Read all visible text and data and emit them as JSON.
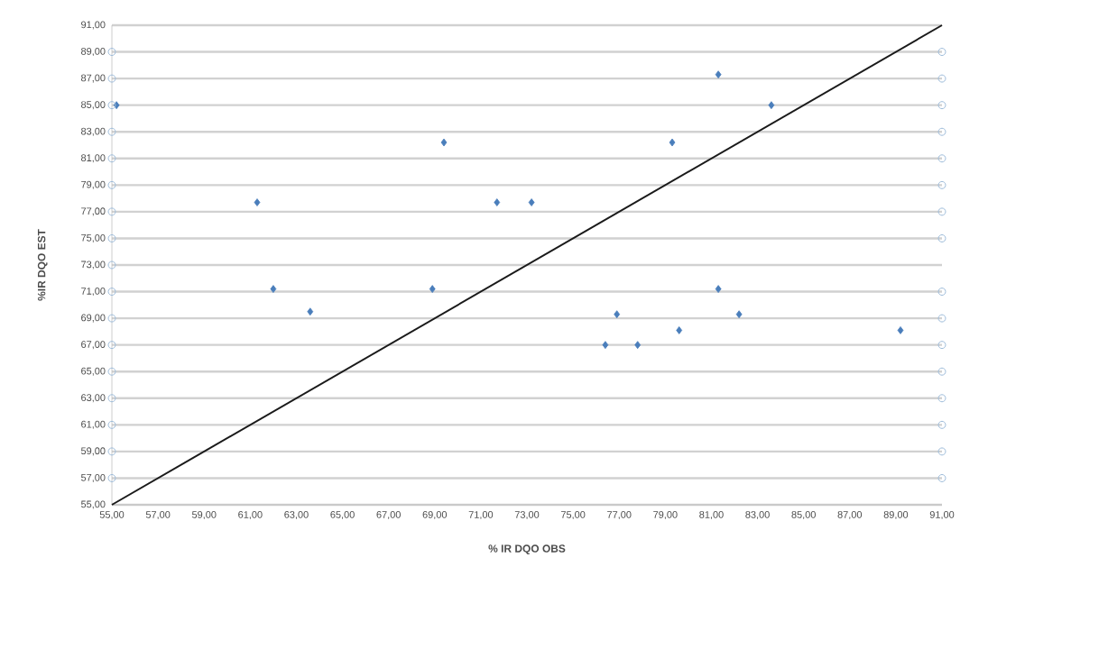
{
  "chart_data": {
    "type": "scatter",
    "xlabel": "% IR DQO OBS",
    "ylabel": "%IR DQO EST",
    "xlim": [
      55,
      91
    ],
    "ylim": [
      55,
      91
    ],
    "xticks": [
      {
        "value": 55,
        "label": "55,00"
      },
      {
        "value": 57,
        "label": "57,00"
      },
      {
        "value": 59,
        "label": "59,00"
      },
      {
        "value": 61,
        "label": "61,00"
      },
      {
        "value": 63,
        "label": "63,00"
      },
      {
        "value": 65,
        "label": "65,00"
      },
      {
        "value": 67,
        "label": "67,00"
      },
      {
        "value": 69,
        "label": "69,00"
      },
      {
        "value": 71,
        "label": "71,00"
      },
      {
        "value": 73,
        "label": "73,00"
      },
      {
        "value": 75,
        "label": "75,00"
      },
      {
        "value": 77,
        "label": "77,00"
      },
      {
        "value": 79,
        "label": "79,00"
      },
      {
        "value": 81,
        "label": "81,00"
      },
      {
        "value": 83,
        "label": "83,00"
      },
      {
        "value": 85,
        "label": "85,00"
      },
      {
        "value": 87,
        "label": "87,00"
      },
      {
        "value": 89,
        "label": "89,00"
      },
      {
        "value": 91,
        "label": "91,00"
      }
    ],
    "yticks": [
      {
        "value": 55,
        "label": "55,00"
      },
      {
        "value": 57,
        "label": "57,00"
      },
      {
        "value": 59,
        "label": "59,00"
      },
      {
        "value": 61,
        "label": "61,00"
      },
      {
        "value": 63,
        "label": "63,00"
      },
      {
        "value": 65,
        "label": "65,00"
      },
      {
        "value": 67,
        "label": "67,00"
      },
      {
        "value": 69,
        "label": "69,00"
      },
      {
        "value": 71,
        "label": "71,00"
      },
      {
        "value": 73,
        "label": "73,00"
      },
      {
        "value": 75,
        "label": "75,00"
      },
      {
        "value": 77,
        "label": "77,00"
      },
      {
        "value": 79,
        "label": "79,00"
      },
      {
        "value": 81,
        "label": "81,00"
      },
      {
        "value": 83,
        "label": "83,00"
      },
      {
        "value": 85,
        "label": "85,00"
      },
      {
        "value": 87,
        "label": "87,00"
      },
      {
        "value": 89,
        "label": "89,00"
      },
      {
        "value": 91,
        "label": "91,00"
      }
    ],
    "grid": "y",
    "series": [
      {
        "marker": "diamond",
        "color": "#4a7ebb",
        "x": [
          55.2,
          61.3,
          62.0,
          63.6,
          68.9,
          69.4,
          71.7,
          73.2,
          76.4,
          76.9,
          77.8,
          79.6,
          79.3,
          81.3,
          81.3,
          82.2,
          83.6,
          89.2
        ],
        "values": [
          85,
          77.7,
          71.2,
          69.5,
          71.2,
          82.2,
          77.7,
          77.7,
          67.0,
          69.3,
          67.0,
          68.1,
          82.2,
          87.3,
          71.2,
          69.3,
          85.0,
          68.1
        ]
      },
      {
        "marker": "circle",
        "color": "#9dbbd9",
        "x": [
          55,
          55,
          55,
          55,
          55,
          55,
          55,
          55,
          55,
          55,
          55,
          55,
          55,
          55,
          55,
          55,
          55,
          91,
          91,
          91,
          91,
          91,
          91,
          91,
          91,
          91,
          91,
          91,
          91,
          91,
          91,
          91,
          91
        ],
        "values": [
          57,
          59,
          61,
          63,
          65,
          67,
          69,
          71,
          73,
          75,
          77,
          79,
          81,
          83,
          85,
          87,
          89,
          57,
          59,
          61,
          63,
          65,
          67,
          69,
          71,
          75,
          77,
          79,
          81,
          83,
          85,
          87,
          89
        ]
      },
      {
        "type": "line",
        "marker": "none",
        "color": "#1a1a1a",
        "x": [
          55,
          91
        ],
        "values": [
          55,
          91
        ]
      }
    ]
  }
}
